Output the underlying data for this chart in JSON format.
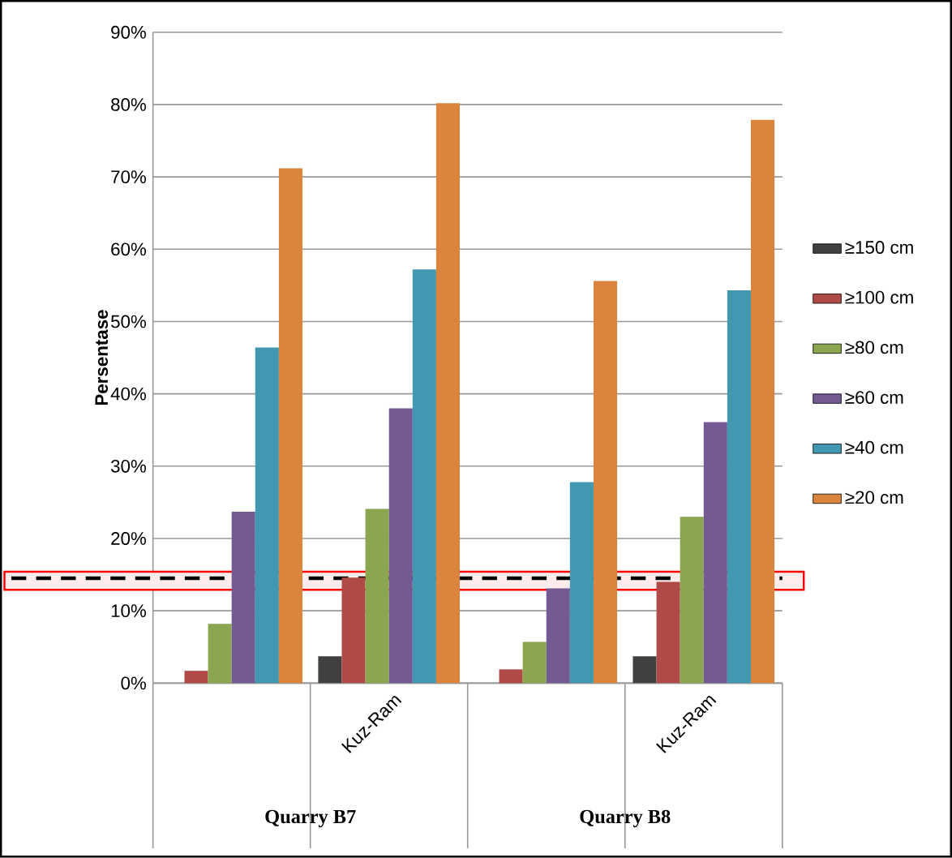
{
  "chart_data": {
    "type": "bar",
    "ylabel": "**Persentase**",
    "categories": [
      null,
      "Kuz-Ram",
      null,
      "Kuz-Ram"
    ],
    "annotations": [
      "Quarry B7",
      "Quarry B8"
    ],
    "series": [
      {
        "name": "≥150 cm",
        "color": "#404040",
        "values": [
          null,
          3.7,
          null,
          3.7
        ]
      },
      {
        "name": "≥100 cm",
        "color": "#b04a47",
        "values": [
          1.7,
          14.6,
          1.9,
          14.0
        ]
      },
      {
        "name": "≥80 cm",
        "color": "#8aa64f",
        "values": [
          8.2,
          24.1,
          5.7,
          23.0
        ]
      },
      {
        "name": "≥60 cm",
        "color": "#735a92",
        "values": [
          23.7,
          38.0,
          13.1,
          36.1
        ]
      },
      {
        "name": "≥40 cm",
        "color": "#4198b0",
        "values": [
          46.4,
          57.2,
          27.8,
          54.3
        ]
      },
      {
        "name": "≥20 cm",
        "color": "#db843d",
        "values": [
          71.2,
          80.2,
          55.6,
          77.9
        ]
      }
    ],
    "ylim": [
      0,
      90
    ],
    "yticks": [
      {
        "value": 0,
        "label": "0%"
      },
      {
        "value": 10,
        "label": "10%"
      },
      {
        "value": 20,
        "label": "20%"
      },
      {
        "value": 30,
        "label": "30%"
      },
      {
        "value": 40,
        "label": "40%"
      },
      {
        "value": 50,
        "label": "50%"
      },
      {
        "value": 60,
        "label": "60%"
      },
      {
        "value": 70,
        "label": "70%"
      },
      {
        "value": 80,
        "label": "80%"
      },
      {
        "value": 90,
        "label": "90%"
      }
    ],
    "grid": "y",
    "legend": "right",
    "ref_lines": [
      {
        "axis": "y",
        "value": 14.5,
        "color": "#000000",
        "line_style": "dashed"
      }
    ],
    "bands": [
      {
        "axis": "y",
        "from": 12.9,
        "to": 15.4,
        "color": "#ff0000"
      }
    ]
  }
}
